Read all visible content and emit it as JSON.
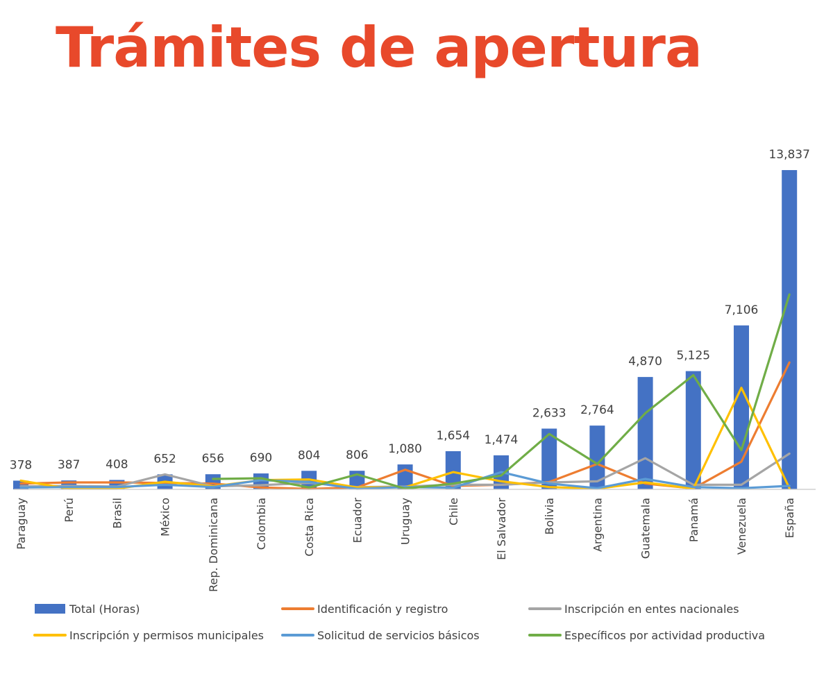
{
  "slide": {
    "title": "Trámites de apertura"
  },
  "colors": {
    "title": "#e8492b",
    "total": "#4472c4",
    "identificacion": "#ed7d31",
    "entes": "#a5a5a5",
    "municipales": "#ffc000",
    "servicios": "#5b9bd5",
    "especificos": "#70ad47"
  },
  "chart_data": {
    "type": "bar",
    "categories": [
      "Paraguay",
      "Perú",
      "Brasil",
      "México",
      "Rep. Dominicana",
      "Colombia",
      "Costa Rica",
      "Ecuador",
      "Uruguay",
      "Chile",
      "El Salvador",
      "Bolivia",
      "Argentina",
      "Guatemala",
      "Panamá",
      "Venezuela",
      "España"
    ],
    "value_labels": [
      "378",
      "387",
      "408",
      "652",
      "656",
      "690",
      "804",
      "806",
      "1,080",
      "1,654",
      "1,474",
      "2,633",
      "2,764",
      "4,870",
      "5,125",
      "7,106",
      "13,837"
    ],
    "ylim": [
      0,
      14500
    ],
    "grid": false,
    "legend_position": "bottom",
    "series": [
      {
        "name": "Total (Horas)",
        "type": "bar",
        "color": "#4472c4",
        "values": [
          378,
          387,
          408,
          652,
          656,
          690,
          804,
          806,
          1080,
          1654,
          1474,
          2633,
          2764,
          4870,
          5125,
          7106,
          13837
        ]
      },
      {
        "name": "Identificación y registro",
        "type": "line",
        "color": "#ed7d31",
        "values": [
          250,
          300,
          300,
          280,
          250,
          80,
          20,
          80,
          850,
          150,
          200,
          320,
          1100,
          250,
          40,
          1200,
          5500
        ]
      },
      {
        "name": "Inscripción en entes nacionales",
        "type": "line",
        "color": "#a5a5a5",
        "values": [
          130,
          150,
          120,
          650,
          130,
          180,
          280,
          100,
          120,
          200,
          200,
          300,
          350,
          1350,
          200,
          200,
          1550
        ]
      },
      {
        "name": "Inscripción y permisos municipales",
        "type": "line",
        "color": "#ffc000",
        "values": [
          380,
          30,
          30,
          330,
          130,
          400,
          430,
          80,
          90,
          750,
          350,
          100,
          30,
          300,
          30,
          4400,
          50
        ]
      },
      {
        "name": "Solicitud de servicios básicos",
        "type": "line",
        "color": "#5b9bd5",
        "values": [
          80,
          100,
          100,
          200,
          100,
          400,
          320,
          20,
          100,
          70,
          750,
          250,
          50,
          450,
          100,
          50,
          150
        ]
      },
      {
        "name": "Específicos por actividad productiva",
        "type": "line",
        "color": "#70ad47",
        "values": [
          null,
          null,
          null,
          null,
          450,
          480,
          80,
          650,
          30,
          250,
          600,
          2400,
          1100,
          3300,
          4950,
          1700,
          8450
        ]
      }
    ]
  }
}
